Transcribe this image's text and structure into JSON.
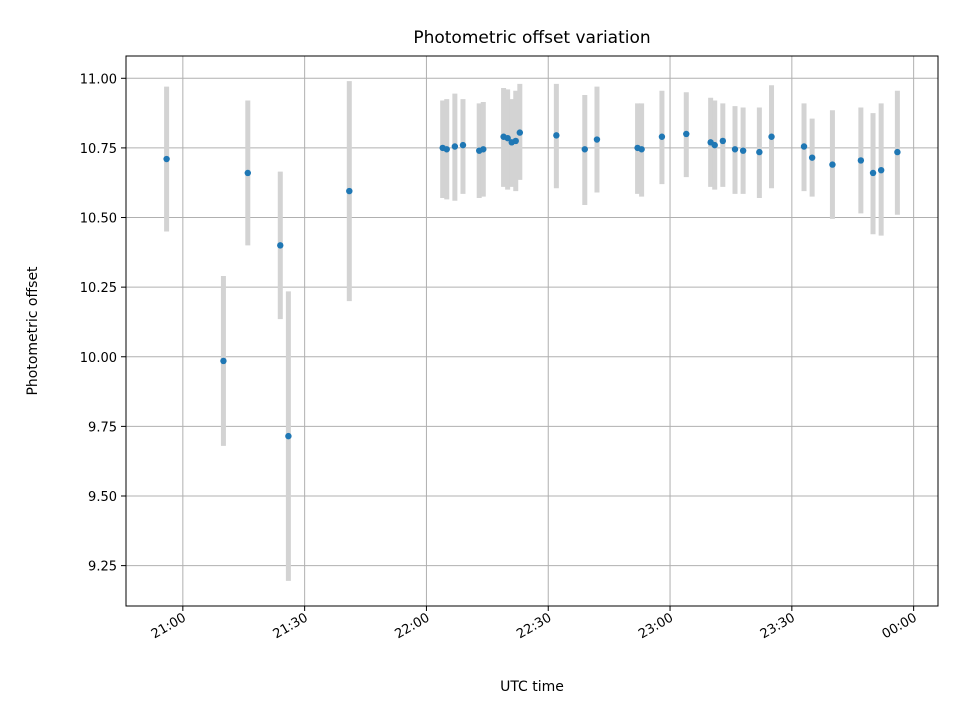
{
  "chart_data": {
    "type": "scatter",
    "title": "Photometric offset variation",
    "xlabel": "UTC time",
    "ylabel": "Photometric offset",
    "x_ticks": [
      "21:00",
      "21:30",
      "22:00",
      "22:30",
      "23:00",
      "23:30",
      "00:00"
    ],
    "y_ticks": [
      "9.25",
      "9.50",
      "9.75",
      "10.00",
      "10.25",
      "10.50",
      "10.75",
      "11.00"
    ],
    "xlim": [
      "20:46",
      "00:06"
    ],
    "ylim": [
      9.105,
      11.08
    ],
    "grid": true,
    "marker_color": "#1f77b4",
    "errorbar_color": "#d3d3d3",
    "series": [
      {
        "points": [
          {
            "x": "20:56",
            "y": 10.71,
            "ylow": 10.45,
            "yhigh": 10.97
          },
          {
            "x": "21:10",
            "y": 9.985,
            "ylow": 9.68,
            "yhigh": 10.29
          },
          {
            "x": "21:16",
            "y": 10.66,
            "ylow": 10.4,
            "yhigh": 10.92
          },
          {
            "x": "21:24",
            "y": 10.4,
            "ylow": 10.135,
            "yhigh": 10.665
          },
          {
            "x": "21:26",
            "y": 9.715,
            "ylow": 9.195,
            "yhigh": 10.235
          },
          {
            "x": "21:41",
            "y": 10.595,
            "ylow": 10.2,
            "yhigh": 10.99
          },
          {
            "x": "22:04",
            "y": 10.75,
            "ylow": 10.57,
            "yhigh": 10.92
          },
          {
            "x": "22:05",
            "y": 10.745,
            "ylow": 10.565,
            "yhigh": 10.925
          },
          {
            "x": "22:07",
            "y": 10.755,
            "ylow": 10.56,
            "yhigh": 10.945
          },
          {
            "x": "22:09",
            "y": 10.76,
            "ylow": 10.585,
            "yhigh": 10.925
          },
          {
            "x": "22:13",
            "y": 10.74,
            "ylow": 10.57,
            "yhigh": 10.91
          },
          {
            "x": "22:14",
            "y": 10.745,
            "ylow": 10.575,
            "yhigh": 10.915
          },
          {
            "x": "22:19",
            "y": 10.79,
            "ylow": 10.61,
            "yhigh": 10.965
          },
          {
            "x": "22:20",
            "y": 10.785,
            "ylow": 10.6,
            "yhigh": 10.96
          },
          {
            "x": "22:21",
            "y": 10.77,
            "ylow": 10.61,
            "yhigh": 10.925
          },
          {
            "x": "22:22",
            "y": 10.775,
            "ylow": 10.595,
            "yhigh": 10.955
          },
          {
            "x": "22:23",
            "y": 10.805,
            "ylow": 10.635,
            "yhigh": 10.98
          },
          {
            "x": "22:32",
            "y": 10.795,
            "ylow": 10.605,
            "yhigh": 10.98
          },
          {
            "x": "22:39",
            "y": 10.745,
            "ylow": 10.545,
            "yhigh": 10.94
          },
          {
            "x": "22:42",
            "y": 10.78,
            "ylow": 10.59,
            "yhigh": 10.97
          },
          {
            "x": "22:52",
            "y": 10.75,
            "ylow": 10.585,
            "yhigh": 10.91
          },
          {
            "x": "22:53",
            "y": 10.745,
            "ylow": 10.575,
            "yhigh": 10.91
          },
          {
            "x": "22:58",
            "y": 10.79,
            "ylow": 10.62,
            "yhigh": 10.955
          },
          {
            "x": "23:04",
            "y": 10.8,
            "ylow": 10.645,
            "yhigh": 10.95
          },
          {
            "x": "23:10",
            "y": 10.77,
            "ylow": 10.61,
            "yhigh": 10.93
          },
          {
            "x": "23:11",
            "y": 10.76,
            "ylow": 10.6,
            "yhigh": 10.92
          },
          {
            "x": "23:13",
            "y": 10.775,
            "ylow": 10.61,
            "yhigh": 10.91
          },
          {
            "x": "23:16",
            "y": 10.745,
            "ylow": 10.585,
            "yhigh": 10.9
          },
          {
            "x": "23:18",
            "y": 10.74,
            "ylow": 10.585,
            "yhigh": 10.895
          },
          {
            "x": "23:22",
            "y": 10.735,
            "ylow": 10.57,
            "yhigh": 10.895
          },
          {
            "x": "23:25",
            "y": 10.79,
            "ylow": 10.605,
            "yhigh": 10.975
          },
          {
            "x": "23:33",
            "y": 10.755,
            "ylow": 10.595,
            "yhigh": 10.91
          },
          {
            "x": "23:35",
            "y": 10.715,
            "ylow": 10.575,
            "yhigh": 10.855
          },
          {
            "x": "23:40",
            "y": 10.69,
            "ylow": 10.495,
            "yhigh": 10.885
          },
          {
            "x": "23:47",
            "y": 10.705,
            "ylow": 10.515,
            "yhigh": 10.895
          },
          {
            "x": "23:50",
            "y": 10.66,
            "ylow": 10.44,
            "yhigh": 10.875
          },
          {
            "x": "23:52",
            "y": 10.67,
            "ylow": 10.435,
            "yhigh": 10.91
          },
          {
            "x": "23:56",
            "y": 10.735,
            "ylow": 10.51,
            "yhigh": 10.955
          }
        ]
      }
    ]
  }
}
